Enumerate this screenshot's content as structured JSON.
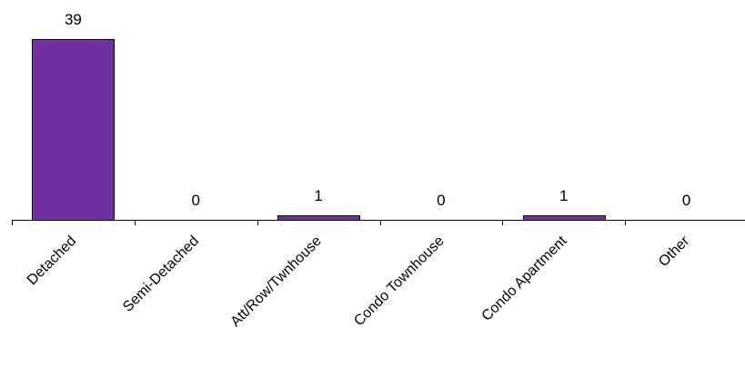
{
  "chart_data": {
    "type": "bar",
    "title": "",
    "xlabel": "",
    "ylabel": "",
    "categories": [
      "Detached",
      "Semi-Detached",
      "Att/Row/Twnhouse",
      "Condo Townhouse",
      "Condo Apartment",
      "Other"
    ],
    "values": [
      39,
      0,
      1,
      0,
      1,
      0
    ],
    "data_labels": [
      "39",
      "0",
      "1",
      "0",
      "1",
      "0"
    ],
    "ylim": [
      0,
      39
    ],
    "grid": false,
    "legend": "none",
    "colors": {
      "bar": "#7030A0",
      "bar_border": "#000000",
      "axis": "#000000"
    }
  }
}
